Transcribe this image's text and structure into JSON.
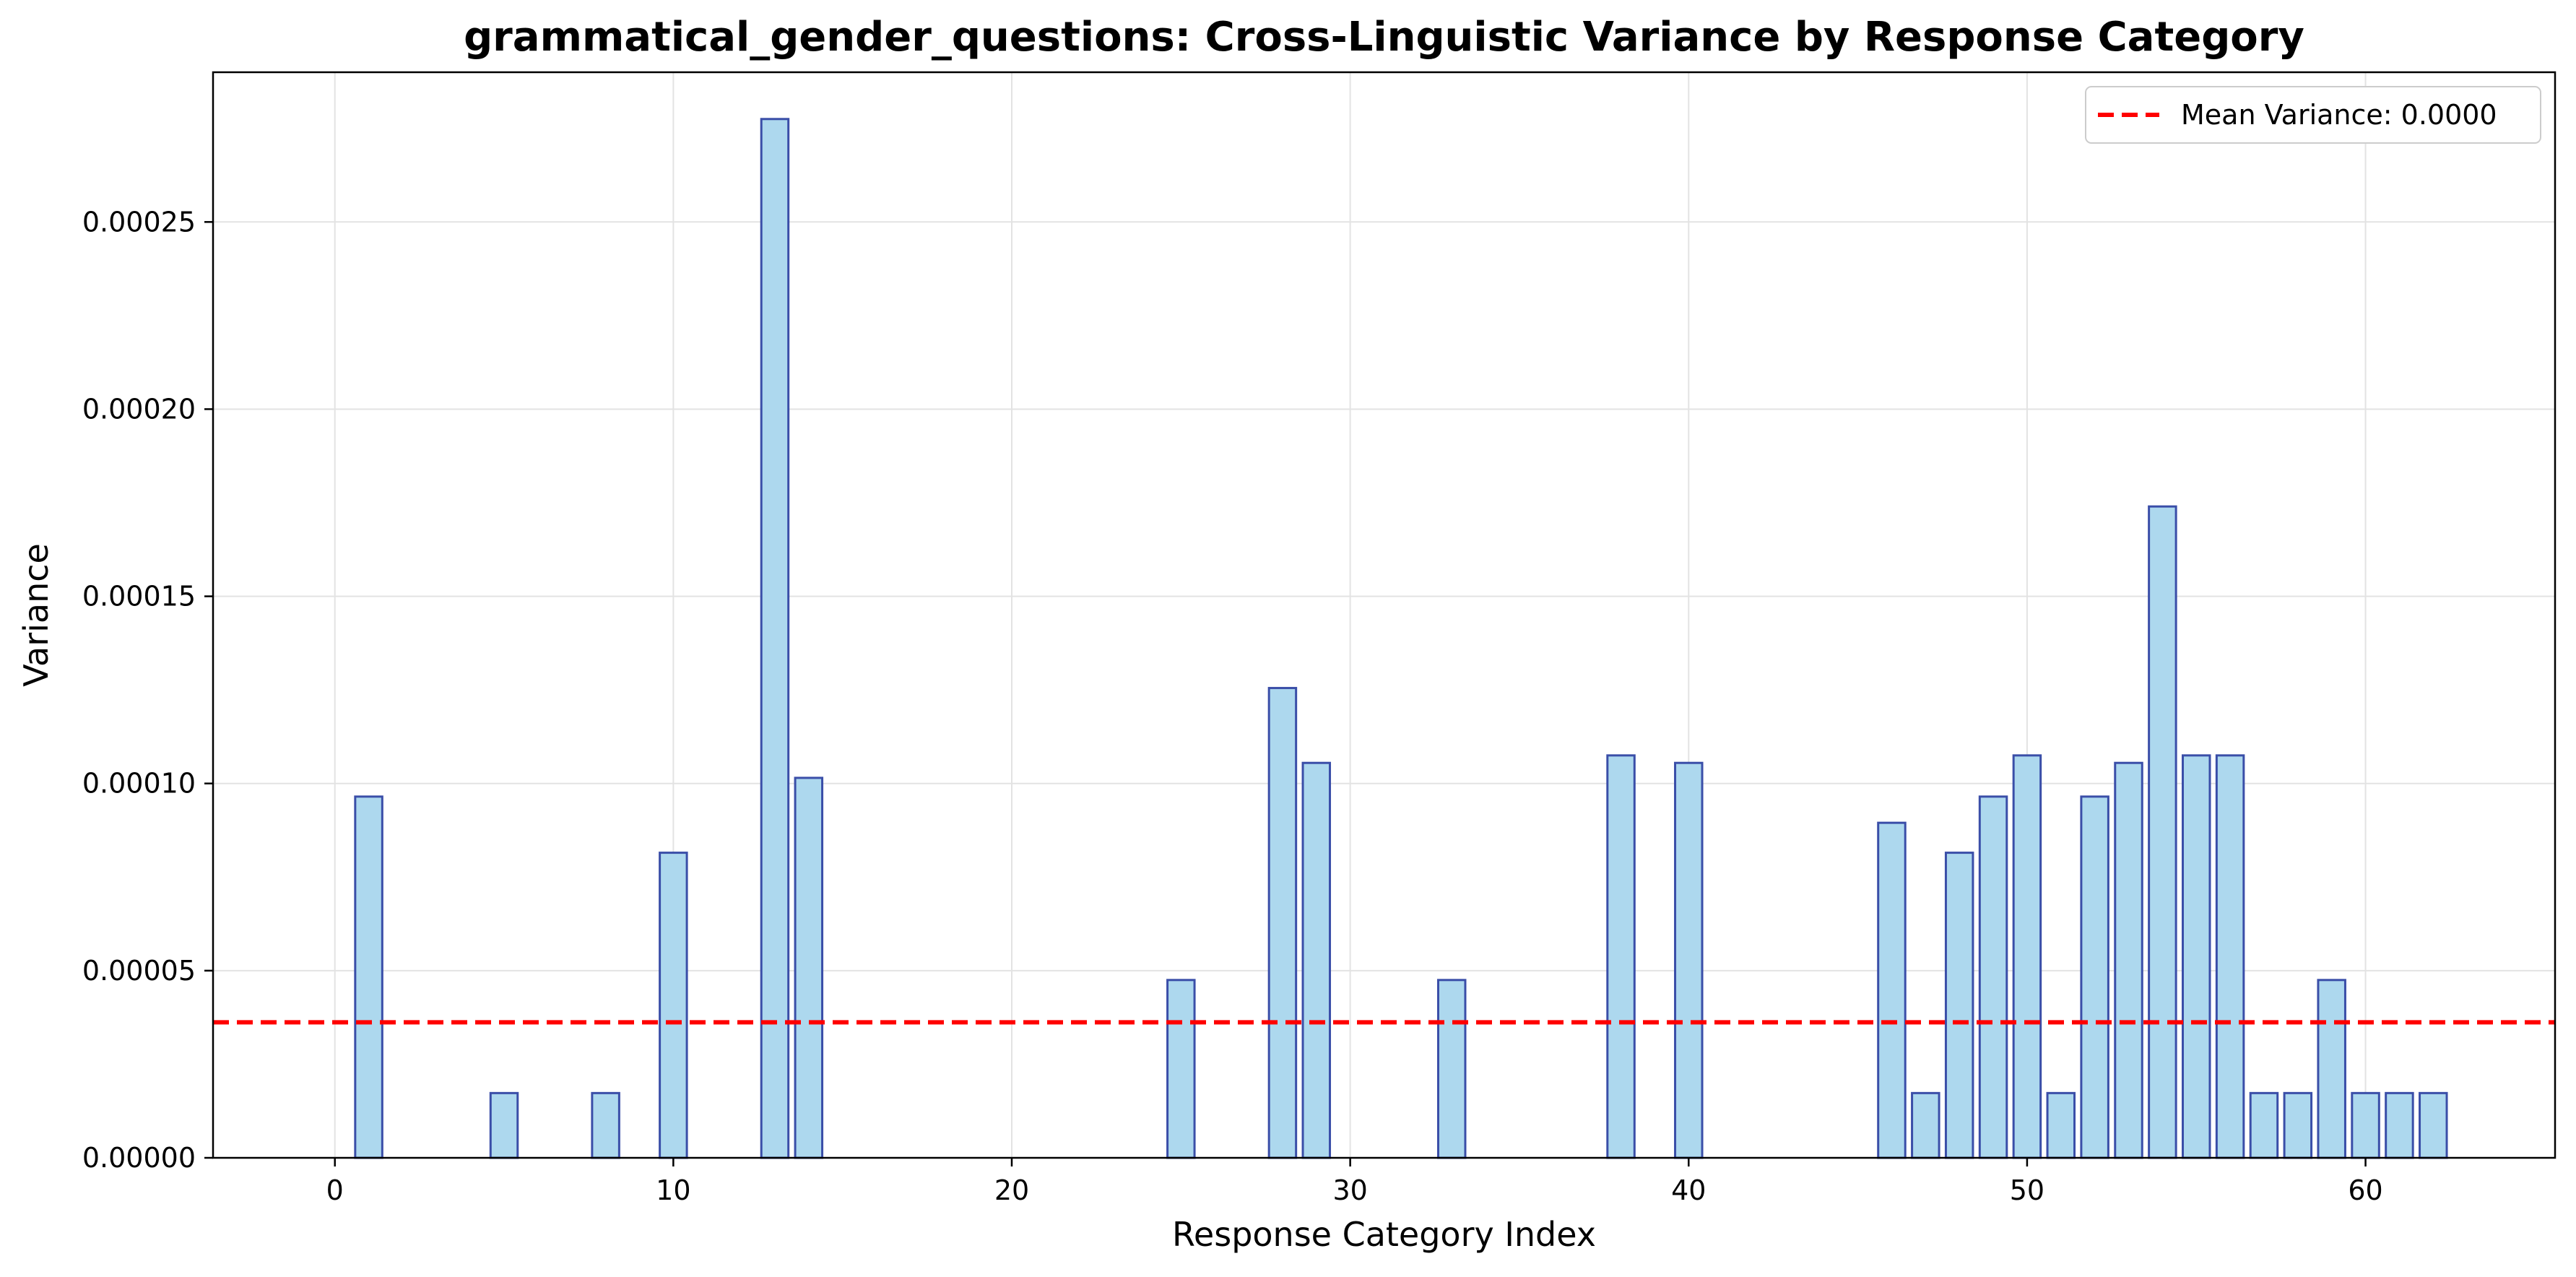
{
  "chart_data": {
    "type": "bar",
    "title": "grammatical_gender_questions: Cross-Linguistic Variance by Response Category",
    "xlabel": "Response Category Index",
    "ylabel": "Variance",
    "xlim": [
      -3.6,
      65.6
    ],
    "ylim": [
      0,
      0.00029
    ],
    "xticks": [
      0,
      10,
      20,
      30,
      40,
      50,
      60
    ],
    "xtick_labels": [
      "0",
      "10",
      "20",
      "30",
      "40",
      "50",
      "60"
    ],
    "yticks": [
      0,
      5e-05,
      0.0001,
      0.00015,
      0.0002,
      0.00025
    ],
    "ytick_labels": [
      "0.00000",
      "0.00005",
      "0.00010",
      "0.00015",
      "0.00020",
      "0.00025"
    ],
    "grid": true,
    "legend_position": "top-right",
    "bar_fill": "#add8ee",
    "bar_edge": "#3a4ea8",
    "mean_line": {
      "value": 3.62e-05,
      "color": "#ff0000",
      "label": "Mean Variance: 0.0000"
    },
    "x": [
      0,
      1,
      2,
      3,
      4,
      5,
      6,
      7,
      8,
      9,
      10,
      11,
      12,
      13,
      14,
      15,
      16,
      17,
      18,
      19,
      20,
      21,
      22,
      23,
      24,
      25,
      26,
      27,
      28,
      29,
      30,
      31,
      32,
      33,
      34,
      35,
      36,
      37,
      38,
      39,
      40,
      41,
      42,
      43,
      44,
      45,
      46,
      47,
      48,
      49,
      50,
      51,
      52,
      53,
      54,
      55,
      56,
      57,
      58,
      59,
      60,
      61,
      62
    ],
    "values": [
      0,
      9.65e-05,
      0,
      0,
      0,
      1.73e-05,
      0,
      0,
      1.73e-05,
      0,
      8.15e-05,
      0,
      0,
      0.0002775,
      0.0001015,
      0,
      0,
      0,
      0,
      0,
      0,
      0,
      0,
      0,
      0,
      4.75e-05,
      0,
      0,
      0.0001255,
      0.0001055,
      0,
      0,
      0,
      4.75e-05,
      0,
      0,
      0,
      0,
      0.0001075,
      0,
      0.0001055,
      0,
      0,
      0,
      0,
      0,
      8.95e-05,
      1.73e-05,
      8.15e-05,
      9.65e-05,
      0.0001075,
      1.73e-05,
      9.65e-05,
      0.0001055,
      0.000174,
      0.0001075,
      0.0001075,
      1.73e-05,
      1.73e-05,
      4.75e-05,
      1.73e-05,
      1.73e-05,
      1.73e-05
    ]
  }
}
